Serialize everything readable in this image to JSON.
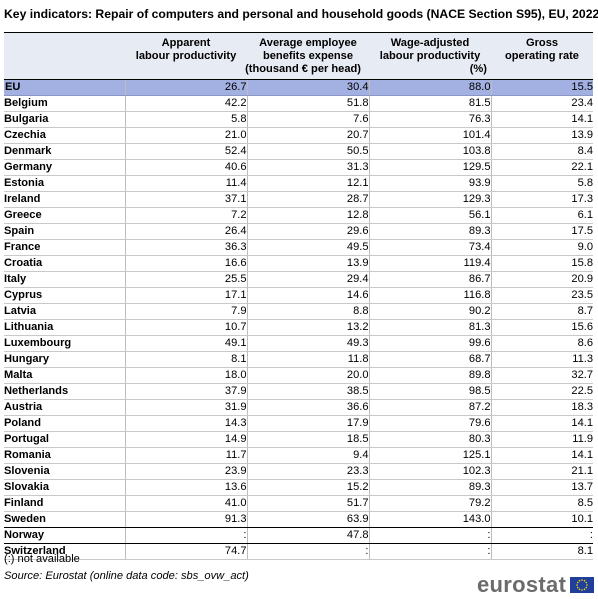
{
  "title": "Key indicators: Repair of computers and personal and household goods (NACE Section S95), EU, 2022",
  "headers": {
    "col1_line1": "Apparent",
    "col1_line2": "labour productivity",
    "col2_line1": "Average employee",
    "col2_line2": "benefits expense",
    "units_1": "(thousand € per head)",
    "col3_line1": "Wage-adjusted",
    "col3_line2": "labour productivity",
    "col4_line1": "Gross",
    "col4_line2": "operating rate",
    "units_2": "(%)"
  },
  "rows": [
    {
      "country": "EU",
      "alp": "26.7",
      "aebe": "30.4",
      "walp": "88.0",
      "gor": "15.5"
    },
    {
      "country": "Belgium",
      "alp": "42.2",
      "aebe": "51.8",
      "walp": "81.5",
      "gor": "23.4"
    },
    {
      "country": "Bulgaria",
      "alp": "5.8",
      "aebe": "7.6",
      "walp": "76.3",
      "gor": "14.1"
    },
    {
      "country": "Czechia",
      "alp": "21.0",
      "aebe": "20.7",
      "walp": "101.4",
      "gor": "13.9"
    },
    {
      "country": "Denmark",
      "alp": "52.4",
      "aebe": "50.5",
      "walp": "103.8",
      "gor": "8.4"
    },
    {
      "country": "Germany",
      "alp": "40.6",
      "aebe": "31.3",
      "walp": "129.5",
      "gor": "22.1"
    },
    {
      "country": "Estonia",
      "alp": "11.4",
      "aebe": "12.1",
      "walp": "93.9",
      "gor": "5.8"
    },
    {
      "country": "Ireland",
      "alp": "37.1",
      "aebe": "28.7",
      "walp": "129.3",
      "gor": "17.3"
    },
    {
      "country": "Greece",
      "alp": "7.2",
      "aebe": "12.8",
      "walp": "56.1",
      "gor": "6.1"
    },
    {
      "country": "Spain",
      "alp": "26.4",
      "aebe": "29.6",
      "walp": "89.3",
      "gor": "17.5"
    },
    {
      "country": "France",
      "alp": "36.3",
      "aebe": "49.5",
      "walp": "73.4",
      "gor": "9.0"
    },
    {
      "country": "Croatia",
      "alp": "16.6",
      "aebe": "13.9",
      "walp": "119.4",
      "gor": "15.8"
    },
    {
      "country": "Italy",
      "alp": "25.5",
      "aebe": "29.4",
      "walp": "86.7",
      "gor": "20.9"
    },
    {
      "country": "Cyprus",
      "alp": "17.1",
      "aebe": "14.6",
      "walp": "116.8",
      "gor": "23.5"
    },
    {
      "country": "Latvia",
      "alp": "7.9",
      "aebe": "8.8",
      "walp": "90.2",
      "gor": "8.7"
    },
    {
      "country": "Lithuania",
      "alp": "10.7",
      "aebe": "13.2",
      "walp": "81.3",
      "gor": "15.6"
    },
    {
      "country": "Luxembourg",
      "alp": "49.1",
      "aebe": "49.3",
      "walp": "99.6",
      "gor": "8.6"
    },
    {
      "country": "Hungary",
      "alp": "8.1",
      "aebe": "11.8",
      "walp": "68.7",
      "gor": "11.3"
    },
    {
      "country": "Malta",
      "alp": "18.0",
      "aebe": "20.0",
      "walp": "89.8",
      "gor": "32.7"
    },
    {
      "country": "Netherlands",
      "alp": "37.9",
      "aebe": "38.5",
      "walp": "98.5",
      "gor": "22.5"
    },
    {
      "country": "Austria",
      "alp": "31.9",
      "aebe": "36.6",
      "walp": "87.2",
      "gor": "18.3"
    },
    {
      "country": "Poland",
      "alp": "14.3",
      "aebe": "17.9",
      "walp": "79.6",
      "gor": "14.1"
    },
    {
      "country": "Portugal",
      "alp": "14.9",
      "aebe": "18.5",
      "walp": "80.3",
      "gor": "11.9"
    },
    {
      "country": "Romania",
      "alp": "11.7",
      "aebe": "9.4",
      "walp": "125.1",
      "gor": "14.1"
    },
    {
      "country": "Slovenia",
      "alp": "23.9",
      "aebe": "23.3",
      "walp": "102.3",
      "gor": "21.1"
    },
    {
      "country": "Slovakia",
      "alp": "13.6",
      "aebe": "15.2",
      "walp": "89.3",
      "gor": "13.7"
    },
    {
      "country": "Finland",
      "alp": "41.0",
      "aebe": "51.7",
      "walp": "79.2",
      "gor": "8.5"
    },
    {
      "country": "Sweden",
      "alp": "91.3",
      "aebe": "63.9",
      "walp": "143.0",
      "gor": "10.1"
    },
    {
      "country": "Norway",
      "alp": ":",
      "aebe": "47.8",
      "walp": ":",
      "gor": ":"
    },
    {
      "country": "Switzerland",
      "alp": "74.7",
      "aebe": ":",
      "walp": ":",
      "gor": "8.1"
    }
  ],
  "footnote": "(:) not available",
  "source": "Source: Eurostat (online data code: sbs_ovw_act)",
  "logo_text": "eurostat",
  "colors": {
    "header_bg": "#e7ebf4",
    "eu_row_bg": "#a3b1e2",
    "flag_blue": "#1f3f9a",
    "flag_stars": "#ffdd00"
  }
}
